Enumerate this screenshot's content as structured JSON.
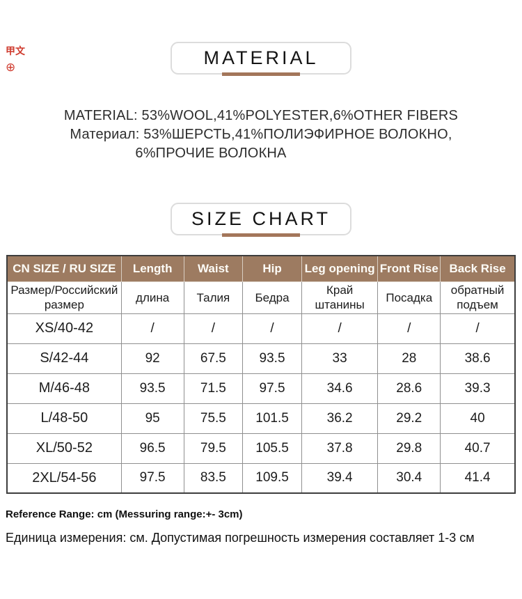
{
  "translate_marks": {
    "text_icon": "甲文",
    "circle_icon": "⊕",
    "color": "#cf3a2d"
  },
  "material_section": {
    "banner_title": "MATERIAL",
    "line_en": "MATERIAL: 53%WOOL,41%POLYESTER,6%OTHER FIBERS",
    "line_ru": "Материал: 53%ШЕРСТЬ,41%ПОЛИЭФИРНОЕ ВОЛОКНО,",
    "line_ru2": "6%ПРОЧИЕ ВОЛОКНА"
  },
  "size_chart_section": {
    "banner_title": "SIZE CHART",
    "table": {
      "headers_en": [
        "CN SIZE / RU SIZE",
        "Length",
        "Waist",
        "Hip",
        "Leg opening",
        "Front Rise",
        "Back Rise"
      ],
      "headers_ru": [
        "Размер/Российский размер",
        "длина",
        "Талия",
        "Бедра",
        "Край штанины",
        "Посадка",
        "обратный подъем"
      ],
      "rows": [
        [
          "XS/40-42",
          "/",
          "/",
          "/",
          "/",
          "/",
          "/"
        ],
        [
          "S/42-44",
          "92",
          "67.5",
          "93.5",
          "33",
          "28",
          "38.6"
        ],
        [
          "M/46-48",
          "93.5",
          "71.5",
          "97.5",
          "34.6",
          "28.6",
          "39.3"
        ],
        [
          "L/48-50",
          "95",
          "75.5",
          "101.5",
          "36.2",
          "29.2",
          "40"
        ],
        [
          "XL/50-52",
          "96.5",
          "79.5",
          "105.5",
          "37.8",
          "29.8",
          "40.7"
        ],
        [
          "2XL/54-56",
          "97.5",
          "83.5",
          "109.5",
          "39.4",
          "30.4",
          "41.4"
        ]
      ]
    }
  },
  "notes": {
    "reference_en": "Reference Range: cm (Messuring range:+- 3cm)",
    "reference_ru": "Единица измерения: см. Допустимая погрешность измерения составляет 1-3 см"
  },
  "colors": {
    "header_brown": "#9d7b61",
    "accent_bar": "#a3765a",
    "table_outer_border": "#3d3d3d",
    "table_inner_border": "#8f8f8f",
    "banner_border": "#dcdcdc",
    "translate_red": "#cf3a2d"
  }
}
